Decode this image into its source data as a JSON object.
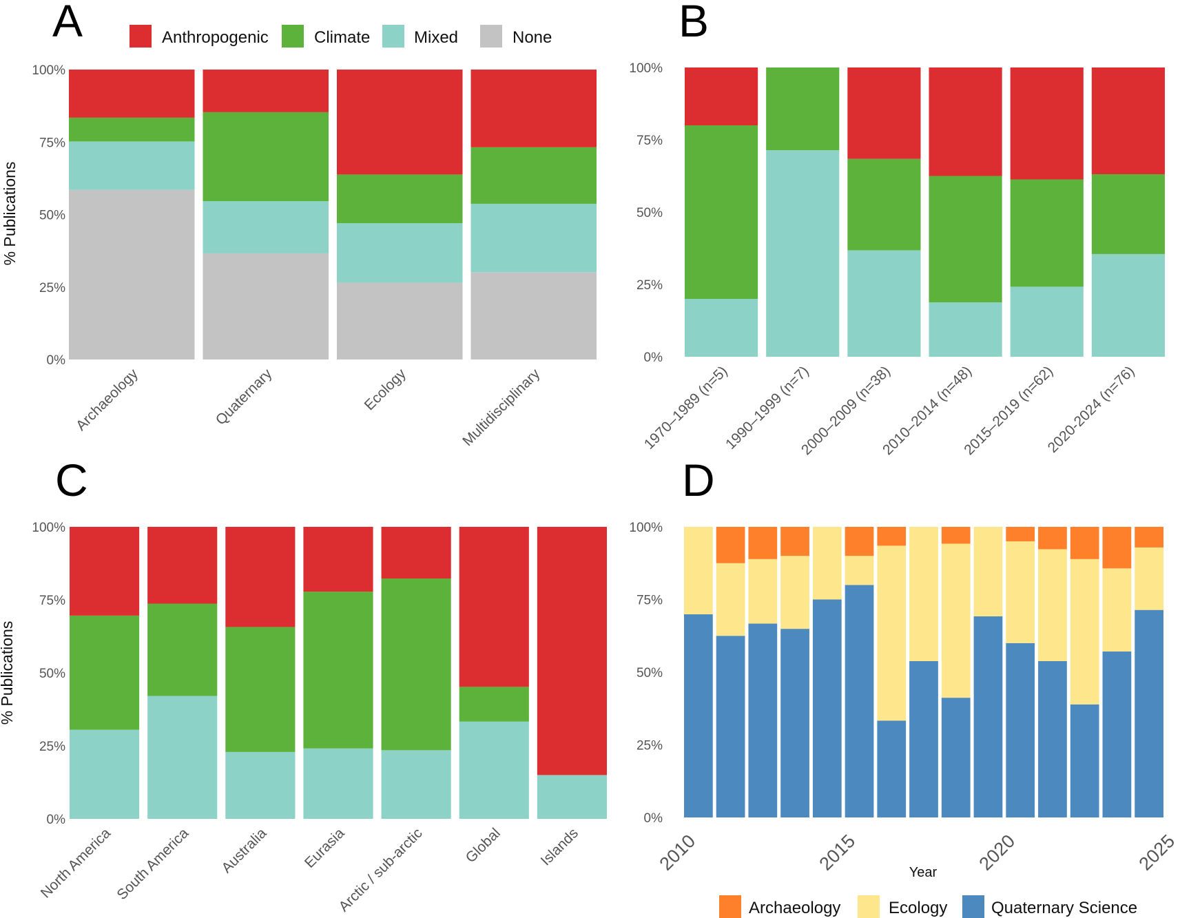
{
  "legend_top": {
    "items": [
      {
        "label": "Anthropogenic",
        "color": "#DC2D31"
      },
      {
        "label": "Climate",
        "color": "#5DB23B"
      },
      {
        "label": "Mixed",
        "color": "#8DD2C6"
      },
      {
        "label": "None",
        "color": "#C3C3C3"
      }
    ]
  },
  "legend_bottom": {
    "items": [
      {
        "label": "Archaeology",
        "color": "#FE802B"
      },
      {
        "label": "Ecology",
        "color": "#FDE68B"
      },
      {
        "label": "Quaternary Science",
        "color": "#4B89BF"
      }
    ]
  },
  "chart_data": [
    {
      "panel": "A",
      "type": "bar",
      "stacked": true,
      "title": "",
      "xlabel": "",
      "ylabel": "% Publications",
      "ylim": [
        0,
        100
      ],
      "yticks": [
        "0%",
        "25%",
        "50%",
        "75%",
        "100%"
      ],
      "categories": [
        "Archaeology",
        "Quaternary",
        "Ecology",
        "Multidisciplinary"
      ],
      "series": [
        {
          "name": "None",
          "color": "#C3C3C3",
          "values": [
            58.5,
            36.6,
            26.5,
            30.1
          ]
        },
        {
          "name": "Mixed",
          "color": "#8DD2C6",
          "values": [
            16.7,
            18.0,
            20.5,
            23.6
          ]
        },
        {
          "name": "Climate",
          "color": "#5DB23B",
          "values": [
            8.2,
            30.7,
            16.8,
            19.5
          ]
        },
        {
          "name": "Anthropogenic",
          "color": "#DC2D31",
          "values": [
            16.6,
            14.7,
            36.2,
            26.8
          ]
        }
      ],
      "legend": "top"
    },
    {
      "panel": "B",
      "type": "bar",
      "stacked": true,
      "title": "",
      "xlabel": "",
      "ylabel": "",
      "ylim": [
        0,
        100
      ],
      "yticks": [
        "0%",
        "25%",
        "50%",
        "75%",
        "100%"
      ],
      "categories": [
        "1970–1989 (n=5)",
        "1990–1999 (n=7)",
        "2000–2009 (n=38)",
        "2010–2014 (n=48)",
        "2015–2019 (n=62)",
        "2020-2024 (n=76)"
      ],
      "series": [
        {
          "name": "Mixed",
          "color": "#8DD2C6",
          "values": [
            20.0,
            71.4,
            36.8,
            18.8,
            24.2,
            35.5
          ]
        },
        {
          "name": "Climate",
          "color": "#5DB23B",
          "values": [
            60.0,
            28.6,
            31.6,
            43.7,
            37.1,
            27.6
          ]
        },
        {
          "name": "Anthropogenic",
          "color": "#DC2D31",
          "values": [
            20.0,
            0,
            31.6,
            37.5,
            38.7,
            36.9
          ]
        }
      ]
    },
    {
      "panel": "C",
      "type": "bar",
      "stacked": true,
      "title": "",
      "xlabel": "",
      "ylabel": "% Publications",
      "ylim": [
        0,
        100
      ],
      "yticks": [
        "0%",
        "25%",
        "50%",
        "75%",
        "100%"
      ],
      "categories": [
        "North America",
        "South America",
        "Australia",
        "Eurasia",
        "Arctic / sub-arctic",
        "Global",
        "Islands"
      ],
      "series": [
        {
          "name": "Mixed",
          "color": "#8DD2C6",
          "values": [
            30.5,
            42.1,
            22.9,
            24.1,
            23.5,
            33.3,
            15.0
          ]
        },
        {
          "name": "Climate",
          "color": "#5DB23B",
          "values": [
            39.1,
            31.6,
            42.8,
            53.7,
            58.8,
            11.9,
            0
          ]
        },
        {
          "name": "Anthropogenic",
          "color": "#DC2D31",
          "values": [
            30.4,
            26.3,
            34.3,
            22.2,
            17.7,
            54.8,
            85.0
          ]
        }
      ]
    },
    {
      "panel": "D",
      "type": "bar",
      "stacked": true,
      "title": "",
      "xlabel": "Year",
      "ylabel": "",
      "ylim": [
        0,
        100
      ],
      "yticks": [
        "0%",
        "25%",
        "50%",
        "75%",
        "100%"
      ],
      "xticks": [
        "2010",
        "2015",
        "2020",
        "2025"
      ],
      "x": [
        2010,
        2011,
        2012,
        2013,
        2014,
        2015,
        2016,
        2017,
        2018,
        2019,
        2020,
        2021,
        2022,
        2023,
        2024
      ],
      "series": [
        {
          "name": "Quaternary Science",
          "color": "#4B89BF",
          "values": [
            69.9,
            62.5,
            66.7,
            64.9,
            75.0,
            80.0,
            33.3,
            53.8,
            41.2,
            69.2,
            60.0,
            53.8,
            38.9,
            57.1,
            71.4
          ]
        },
        {
          "name": "Ecology",
          "color": "#FDE68B",
          "values": [
            30.1,
            25.0,
            22.2,
            25.1,
            25.0,
            10.0,
            60.2,
            46.2,
            53.0,
            30.8,
            35.0,
            38.5,
            50.0,
            28.6,
            21.5
          ]
        },
        {
          "name": "Archaeology",
          "color": "#FE802B",
          "values": [
            0,
            12.5,
            11.1,
            10.0,
            0,
            10.0,
            6.5,
            0,
            5.8,
            0,
            5.0,
            7.7,
            11.1,
            14.3,
            7.1
          ]
        }
      ],
      "legend": "bottom"
    }
  ]
}
